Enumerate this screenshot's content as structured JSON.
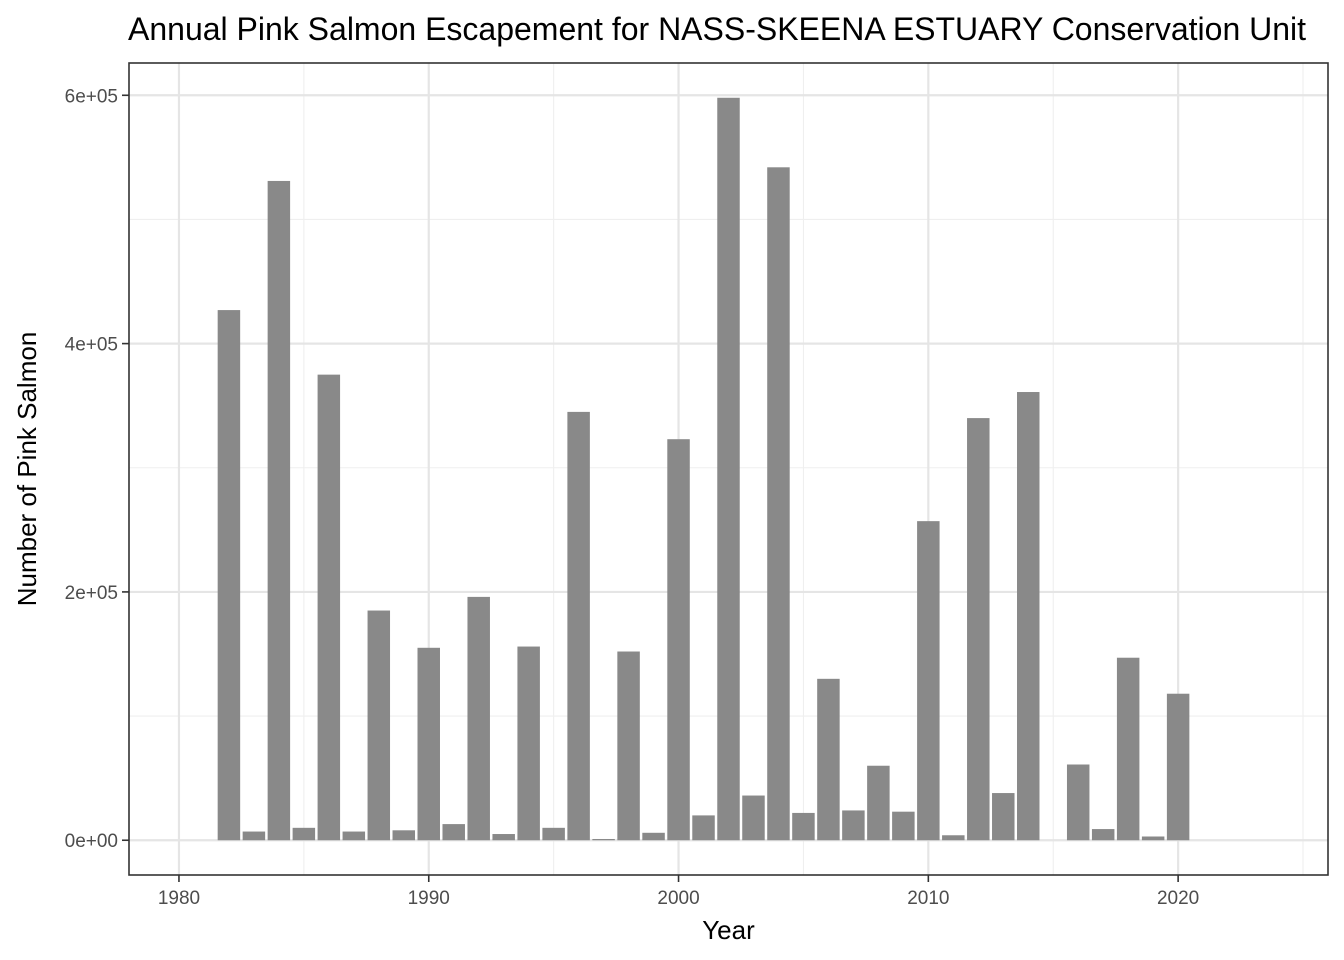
{
  "chart_data": {
    "type": "bar",
    "title": "Annual Pink Salmon Escapement for NASS-SKEENA ESTUARY Conservation Unit",
    "xlabel": "Year",
    "ylabel": "Number of Pink Salmon",
    "xlim": [
      1978,
      2026
    ],
    "ylim": [
      -28000,
      626000
    ],
    "x_ticks": [
      1980,
      1990,
      2000,
      2010,
      2020
    ],
    "x_tick_labels": [
      "1980",
      "1990",
      "2000",
      "2010",
      "2020"
    ],
    "y_ticks": [
      0,
      200000,
      400000,
      600000
    ],
    "y_tick_labels": [
      "0e+00",
      "2e+05",
      "4e+05",
      "6e+05"
    ],
    "grid": true,
    "bar_color": "#898989",
    "x": [
      1982,
      1983,
      1984,
      1985,
      1986,
      1987,
      1988,
      1989,
      1990,
      1991,
      1992,
      1993,
      1994,
      1995,
      1996,
      1997,
      1998,
      1999,
      2000,
      2001,
      2002,
      2003,
      2004,
      2005,
      2006,
      2007,
      2008,
      2009,
      2010,
      2011,
      2012,
      2013,
      2014,
      2016,
      2017,
      2018,
      2019,
      2020
    ],
    "values": [
      427000,
      7000,
      531000,
      10000,
      375000,
      7000,
      185000,
      8000,
      155000,
      13000,
      196000,
      5000,
      156000,
      10000,
      345000,
      1000,
      152000,
      6000,
      323000,
      20000,
      598000,
      36000,
      542000,
      22000,
      130000,
      24000,
      60000,
      23000,
      257000,
      4000,
      340000,
      38000,
      361000,
      61000,
      9000,
      147000,
      3000,
      118000
    ]
  }
}
